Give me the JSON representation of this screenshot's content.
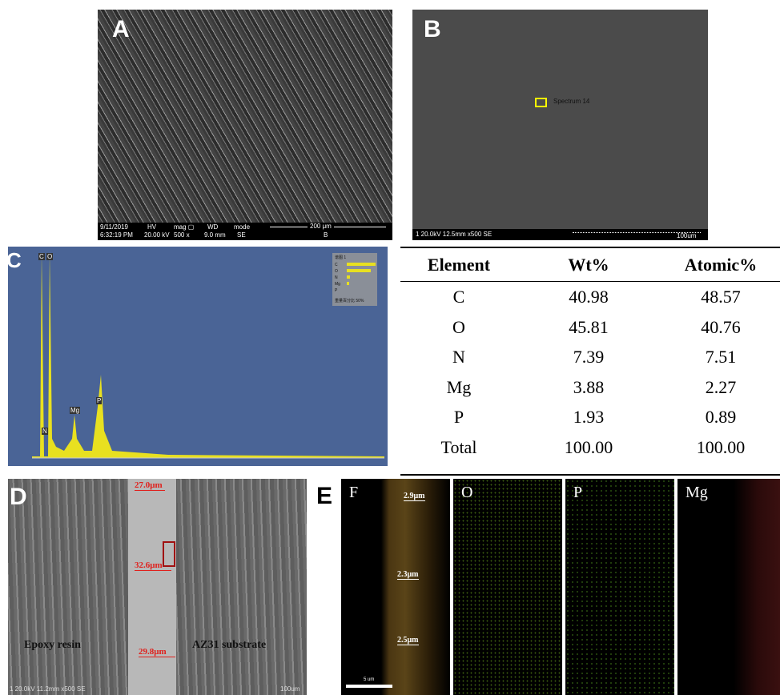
{
  "panel_a": {
    "label": "A",
    "info": [
      "9/11/2019",
      "6:32:19 PM",
      "HV",
      "20.00 kV",
      "mag ▢",
      "500 x",
      "WD",
      "9.0 mm",
      "mode",
      "SE"
    ],
    "scale": "200 μm",
    "tag": "B"
  },
  "panel_b": {
    "label": "B",
    "spectrum": "Spectrum 14",
    "info": "1 20.0kV 12.5mm x500 SE",
    "scale": "100um"
  },
  "panel_c": {
    "label": "C",
    "peaks": [
      "C",
      "O",
      "N",
      "Mg",
      "P"
    ],
    "legend_title": "谱图 1",
    "legend_items": [
      "C",
      "O",
      "N",
      "Mg",
      "P"
    ],
    "legend_footer": "重量百分比 50%"
  },
  "table": {
    "header": [
      "Element",
      "Wt%",
      "Atomic%"
    ],
    "rows": [
      [
        "C",
        "40.98",
        "48.57"
      ],
      [
        "O",
        "45.81",
        "40.76"
      ],
      [
        "N",
        "7.39",
        "7.51"
      ],
      [
        "Mg",
        "3.88",
        "2.27"
      ],
      [
        "P",
        "1.93",
        "0.89"
      ],
      [
        "Total",
        "100.00",
        "100.00"
      ]
    ]
  },
  "panel_d": {
    "label": "D",
    "widths": [
      "27.0μm",
      "32.6μm",
      "29.8μm"
    ],
    "left": "Epoxy resin",
    "right": "AZ31 substrate",
    "info": "1 20.0kV 11.2mm x500 SE",
    "scale": "100um"
  },
  "panel_e": {
    "label": "E",
    "maps": [
      "F",
      "O",
      "P",
      "Mg"
    ],
    "widths": [
      "2.9μm",
      "2.3μm",
      "2.5μm"
    ],
    "scale": "5 um"
  }
}
